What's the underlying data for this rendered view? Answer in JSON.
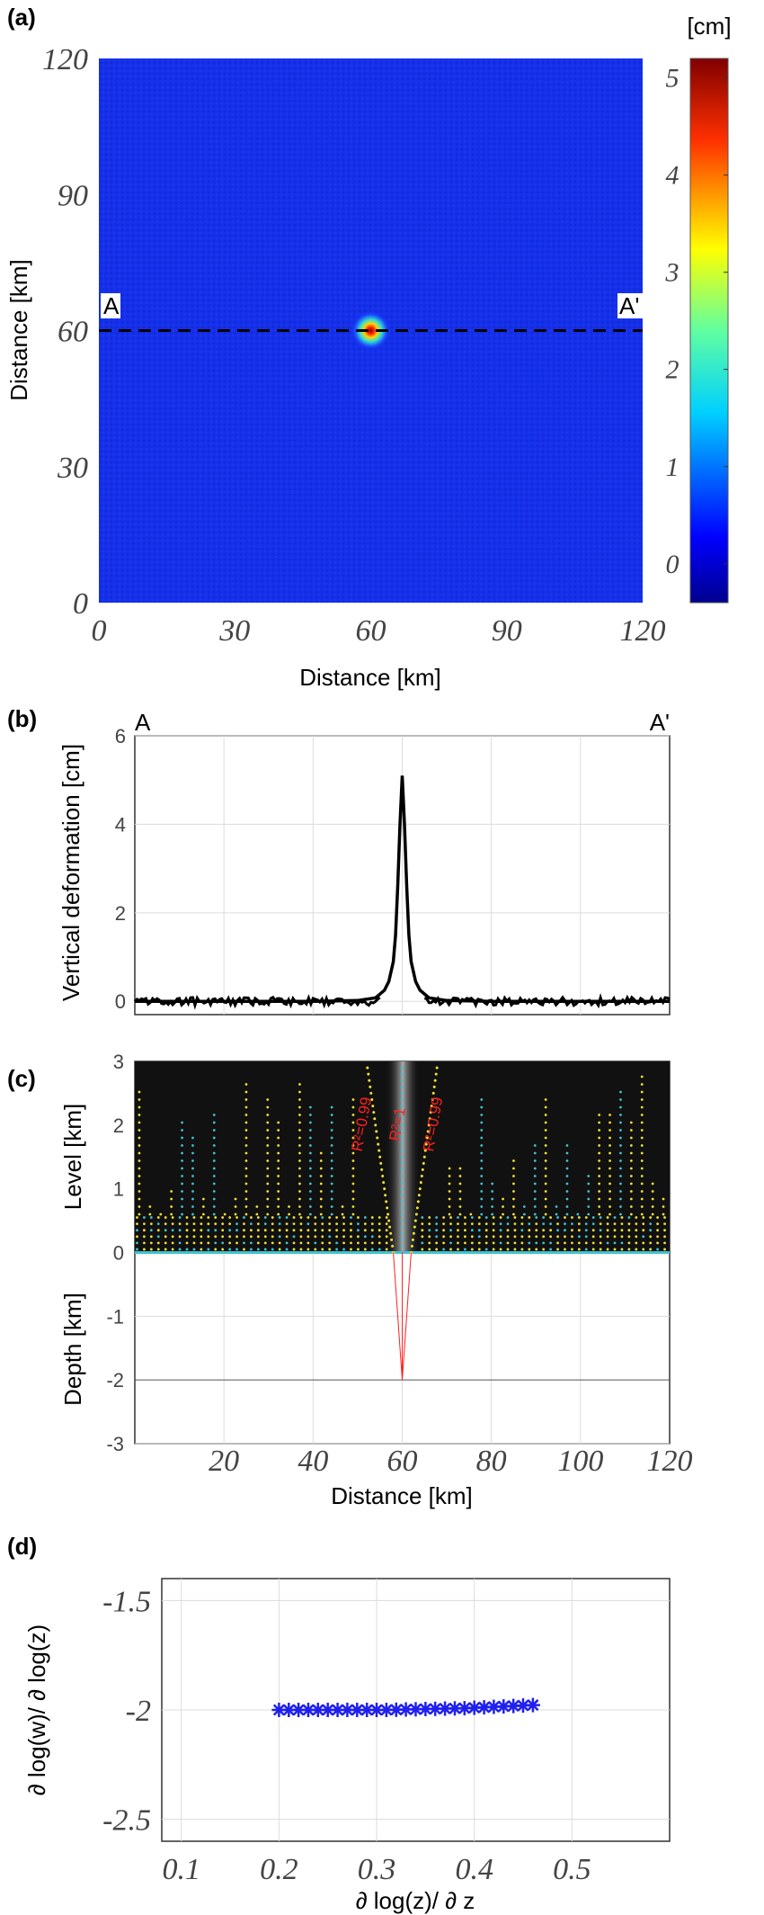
{
  "chart_data": [
    {
      "panel": "(a)",
      "type": "heatmap",
      "xlabel": "Distance [km]",
      "ylabel": "Distance [km]",
      "xlim": [
        0,
        120
      ],
      "ylim": [
        0,
        120
      ],
      "xticks": [
        "0",
        "30",
        "60",
        "90",
        "120"
      ],
      "yticks": [
        "0",
        "30",
        "60",
        "90",
        "120"
      ],
      "colorbar": {
        "label": "[cm]",
        "range": [
          -0.4,
          5.2
        ],
        "ticks": [
          "0",
          "1",
          "2",
          "3",
          "4",
          "5"
        ],
        "colormap": "jet"
      },
      "background_value": 0,
      "peak": {
        "x": 60,
        "y": 60,
        "value": 5.1
      },
      "profile_line": {
        "y": 60,
        "x_start": 0,
        "x_end": 120,
        "start_label": "A",
        "end_label": "A'"
      }
    },
    {
      "panel": "(b)",
      "type": "line",
      "title_left": "A",
      "title_right": "A'",
      "ylabel": "Vertical deformation [cm]",
      "xlim": [
        0,
        120
      ],
      "ylim": [
        -0.3,
        6
      ],
      "yticks": [
        "0",
        "2",
        "4",
        "6"
      ],
      "series": [
        {
          "x": [
            0,
            10,
            20,
            30,
            40,
            50,
            54,
            56,
            57,
            58,
            58.5,
            59,
            59.5,
            60,
            60.5,
            61,
            61.5,
            62,
            63,
            64,
            66,
            70,
            80,
            90,
            100,
            110,
            120
          ],
          "values": [
            0,
            0,
            0,
            0,
            0,
            0.02,
            0.08,
            0.25,
            0.45,
            0.9,
            1.5,
            2.6,
            4.0,
            5.1,
            4.0,
            2.6,
            1.5,
            0.9,
            0.45,
            0.25,
            0.08,
            0.02,
            0,
            0,
            0,
            0,
            0
          ]
        }
      ]
    },
    {
      "panel": "(c)",
      "type": "scatter",
      "ylabel_upper": "Level [km]",
      "ylabel_lower": "Depth [km]",
      "xlabel": "Distance [km]",
      "xlim": [
        0,
        120
      ],
      "ylim": [
        -3,
        3
      ],
      "xticks": [
        "20",
        "40",
        "60",
        "80",
        "100",
        "120"
      ],
      "yticks": [
        "-3",
        "-2",
        "-1",
        "0",
        "1",
        "2",
        "3"
      ],
      "annotations": [
        {
          "text": "R²=0.99",
          "x": 52
        },
        {
          "text": "R²=1",
          "x": 60
        },
        {
          "text": "R²=0.99",
          "x": 68
        }
      ],
      "source_depth_km": -2,
      "source_x_km": 60,
      "ridge_lines": [
        {
          "x_at_level0": 58,
          "x_at_level3": 52
        },
        {
          "x_at_level0": 60,
          "x_at_level3": 60
        },
        {
          "x_at_level0": 62,
          "x_at_level3": 68
        }
      ],
      "colors": {
        "dots_primary": "#f2e135",
        "dots_secondary": "#3fc3d0",
        "background": "#111111",
        "lines": "#ff2020"
      }
    },
    {
      "panel": "(d)",
      "type": "scatter",
      "xlabel": "∂ log(z)/ ∂ z",
      "ylabel": "∂ log(w)/ ∂ log(z)",
      "xlim": [
        0.08,
        0.6
      ],
      "ylim": [
        -2.6,
        -1.4
      ],
      "xticks": [
        "0.1",
        "0.2",
        "0.3",
        "0.4",
        "0.5"
      ],
      "yticks": [
        "-1.5",
        "-2",
        "-2.5"
      ],
      "series": [
        {
          "marker": "*",
          "color": "#2020ee",
          "x": [
            0.2,
            0.21,
            0.22,
            0.23,
            0.24,
            0.25,
            0.26,
            0.27,
            0.28,
            0.29,
            0.3,
            0.31,
            0.32,
            0.33,
            0.34,
            0.35,
            0.36,
            0.37,
            0.38,
            0.39,
            0.4,
            0.41,
            0.42,
            0.43,
            0.44,
            0.45,
            0.46
          ],
          "values": [
            -2.0,
            -2.0,
            -2.0,
            -2.0,
            -2.0,
            -2.0,
            -2.0,
            -2.0,
            -2.0,
            -2.0,
            -2.0,
            -2.0,
            -1.999,
            -1.998,
            -1.997,
            -1.996,
            -1.995,
            -1.994,
            -1.993,
            -1.992,
            -1.99,
            -1.988,
            -1.986,
            -1.984,
            -1.982,
            -1.98,
            -1.978
          ]
        }
      ]
    }
  ]
}
